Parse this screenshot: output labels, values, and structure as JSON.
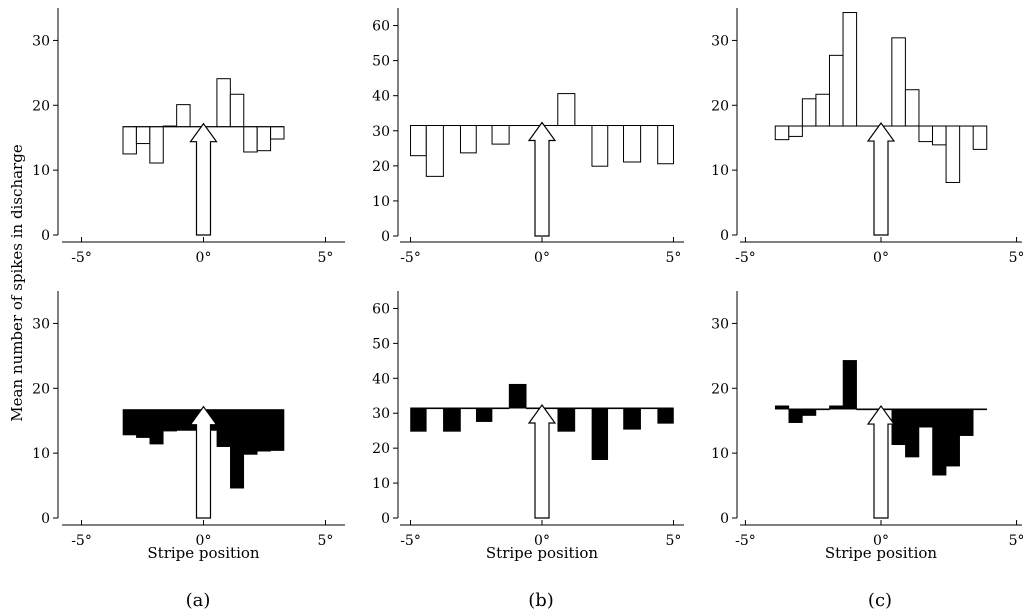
{
  "figure": {
    "ylabel": "Mean number of spikes in discharge",
    "xlabel": "Stripe position",
    "panel_labels": [
      "(a)",
      "(b)",
      "(c)"
    ]
  },
  "chart_data": [
    {
      "id": "a-top",
      "type": "bar",
      "style": "open",
      "panel": "(a)",
      "baseline": 16.7,
      "ylim": [
        0,
        35
      ],
      "yticks": [
        0,
        10,
        20,
        30
      ],
      "xlim": [
        -5.8,
        5.8
      ],
      "xticks": [
        -5,
        0,
        5
      ],
      "xticklabels": [
        "-5°",
        "0°",
        "5°"
      ],
      "bins": [
        [
          -3.3,
          -2.75,
          12.5
        ],
        [
          -2.75,
          -2.2,
          14.1
        ],
        [
          -2.2,
          -1.65,
          11.1
        ],
        [
          -1.65,
          -1.1,
          16.8
        ],
        [
          -1.1,
          -0.55,
          20.1
        ],
        [
          -0.55,
          0,
          16.7
        ],
        [
          0,
          0.55,
          16.7
        ],
        [
          0.55,
          1.1,
          24.1
        ],
        [
          1.1,
          1.65,
          21.7
        ],
        [
          1.65,
          2.2,
          12.8
        ],
        [
          2.2,
          2.75,
          13.0
        ],
        [
          2.75,
          3.3,
          14.8
        ]
      ]
    },
    {
      "id": "b-top",
      "type": "bar",
      "style": "open",
      "panel": "(b)",
      "baseline": 31.5,
      "ylim": [
        0,
        65
      ],
      "yticks": [
        0,
        10,
        20,
        30,
        40,
        50,
        60
      ],
      "xlim": [
        -5.4,
        5.4
      ],
      "xticks": [
        -5,
        0,
        5
      ],
      "xticklabels": [
        "-5°",
        "0°",
        "5°"
      ],
      "bins": [
        [
          -5.0,
          -4.4,
          22.9
        ],
        [
          -4.4,
          -3.75,
          17.0
        ],
        [
          -3.75,
          -3.1,
          31.5
        ],
        [
          -3.1,
          -2.5,
          23.7
        ],
        [
          -2.5,
          -1.9,
          31.5
        ],
        [
          -1.9,
          -1.25,
          26.2
        ],
        [
          -1.25,
          -0.6,
          31.5
        ],
        [
          -0.6,
          0,
          31.5
        ],
        [
          0,
          0.6,
          31.5
        ],
        [
          0.6,
          1.25,
          40.6
        ],
        [
          1.25,
          1.9,
          31.5
        ],
        [
          1.9,
          2.5,
          19.9
        ],
        [
          2.5,
          3.1,
          31.5
        ],
        [
          3.1,
          3.75,
          21.1
        ],
        [
          3.75,
          4.4,
          31.5
        ],
        [
          4.4,
          5.0,
          20.6
        ]
      ]
    },
    {
      "id": "c-top",
      "type": "bar",
      "style": "open",
      "panel": "(c)",
      "baseline": 16.8,
      "ylim": [
        0,
        35
      ],
      "yticks": [
        0,
        10,
        20,
        30
      ],
      "xlim": [
        -5.2,
        5.2
      ],
      "xticks": [
        -5,
        0,
        5
      ],
      "xticklabels": [
        "-5°",
        "0°",
        "5°"
      ],
      "bins": [
        [
          -3.9,
          -3.4,
          14.7
        ],
        [
          -3.4,
          -2.9,
          15.2
        ],
        [
          -2.9,
          -2.4,
          21.0
        ],
        [
          -2.4,
          -1.9,
          21.7
        ],
        [
          -1.9,
          -1.4,
          27.7
        ],
        [
          -1.4,
          -0.9,
          34.3
        ],
        [
          -0.9,
          -0.4,
          16.8
        ],
        [
          -0.4,
          0,
          16.8
        ],
        [
          0,
          0.4,
          16.8
        ],
        [
          0.4,
          0.9,
          30.4
        ],
        [
          0.9,
          1.4,
          22.4
        ],
        [
          1.4,
          1.9,
          14.4
        ],
        [
          1.9,
          2.4,
          13.9
        ],
        [
          2.4,
          2.9,
          8.1
        ],
        [
          2.9,
          3.4,
          16.8
        ],
        [
          3.4,
          3.9,
          13.2
        ]
      ]
    },
    {
      "id": "a-bottom",
      "type": "bar",
      "style": "filled",
      "panel": "(a)",
      "baseline": 16.7,
      "ylim": [
        0,
        35
      ],
      "yticks": [
        0,
        10,
        20,
        30
      ],
      "xlim": [
        -5.8,
        5.8
      ],
      "xticks": [
        -5,
        0,
        5
      ],
      "xticklabels": [
        "-5°",
        "0°",
        "5°"
      ],
      "xlabel_shown": true,
      "bins": [
        [
          -3.3,
          -2.75,
          12.8
        ],
        [
          -2.75,
          -2.2,
          12.4
        ],
        [
          -2.2,
          -1.65,
          11.4
        ],
        [
          -1.65,
          -1.1,
          13.4
        ],
        [
          -1.1,
          -0.55,
          13.5
        ],
        [
          -0.55,
          0,
          13.5
        ],
        [
          0,
          0.55,
          13.5
        ],
        [
          0.55,
          1.1,
          11.0
        ],
        [
          1.1,
          1.65,
          4.6
        ],
        [
          1.65,
          2.2,
          9.8
        ],
        [
          2.2,
          2.75,
          10.3
        ],
        [
          2.75,
          3.3,
          10.4
        ]
      ]
    },
    {
      "id": "b-bottom",
      "type": "bar",
      "style": "filled",
      "panel": "(b)",
      "baseline": 31.5,
      "ylim": [
        0,
        65
      ],
      "yticks": [
        0,
        10,
        20,
        30,
        40,
        50,
        60
      ],
      "xlim": [
        -5.4,
        5.4
      ],
      "xticks": [
        -5,
        0,
        5
      ],
      "xticklabels": [
        "-5°",
        "0°",
        "5°"
      ],
      "xlabel_shown": true,
      "bins": [
        [
          -5.0,
          -4.4,
          24.8
        ],
        [
          -4.4,
          -3.75,
          31.5
        ],
        [
          -3.75,
          -3.1,
          24.8
        ],
        [
          -3.1,
          -2.5,
          31.5
        ],
        [
          -2.5,
          -1.9,
          27.6
        ],
        [
          -1.9,
          -1.25,
          31.5
        ],
        [
          -1.25,
          -0.6,
          38.3
        ],
        [
          -0.6,
          0,
          31.5
        ],
        [
          0,
          0.6,
          31.5
        ],
        [
          0.6,
          1.25,
          24.8
        ],
        [
          1.25,
          1.9,
          31.5
        ],
        [
          1.9,
          2.5,
          16.7
        ],
        [
          2.5,
          3.1,
          31.5
        ],
        [
          3.1,
          3.75,
          25.4
        ],
        [
          3.75,
          4.4,
          31.5
        ],
        [
          4.4,
          5.0,
          27.1
        ]
      ]
    },
    {
      "id": "c-bottom",
      "type": "bar",
      "style": "filled",
      "panel": "(c)",
      "baseline": 16.8,
      "ylim": [
        0,
        35
      ],
      "yticks": [
        0,
        10,
        20,
        30
      ],
      "xlim": [
        -5.2,
        5.2
      ],
      "xticks": [
        -5,
        0,
        5
      ],
      "xticklabels": [
        "-5°",
        "0°",
        "5°"
      ],
      "xlabel_shown": true,
      "bins": [
        [
          -3.9,
          -3.4,
          17.3
        ],
        [
          -3.4,
          -2.9,
          14.7
        ],
        [
          -2.9,
          -2.4,
          15.8
        ],
        [
          -2.4,
          -1.9,
          16.8
        ],
        [
          -1.9,
          -1.4,
          17.3
        ],
        [
          -1.4,
          -0.9,
          24.3
        ],
        [
          -0.9,
          -0.4,
          16.8
        ],
        [
          -0.4,
          0,
          16.8
        ],
        [
          0,
          0.4,
          16.8
        ],
        [
          0.4,
          0.9,
          11.3
        ],
        [
          0.9,
          1.4,
          9.4
        ],
        [
          1.4,
          1.9,
          14.0
        ],
        [
          1.9,
          2.4,
          6.6
        ],
        [
          2.4,
          2.9,
          8.0
        ],
        [
          2.9,
          3.4,
          12.7
        ],
        [
          3.4,
          3.9,
          16.8
        ]
      ]
    }
  ]
}
